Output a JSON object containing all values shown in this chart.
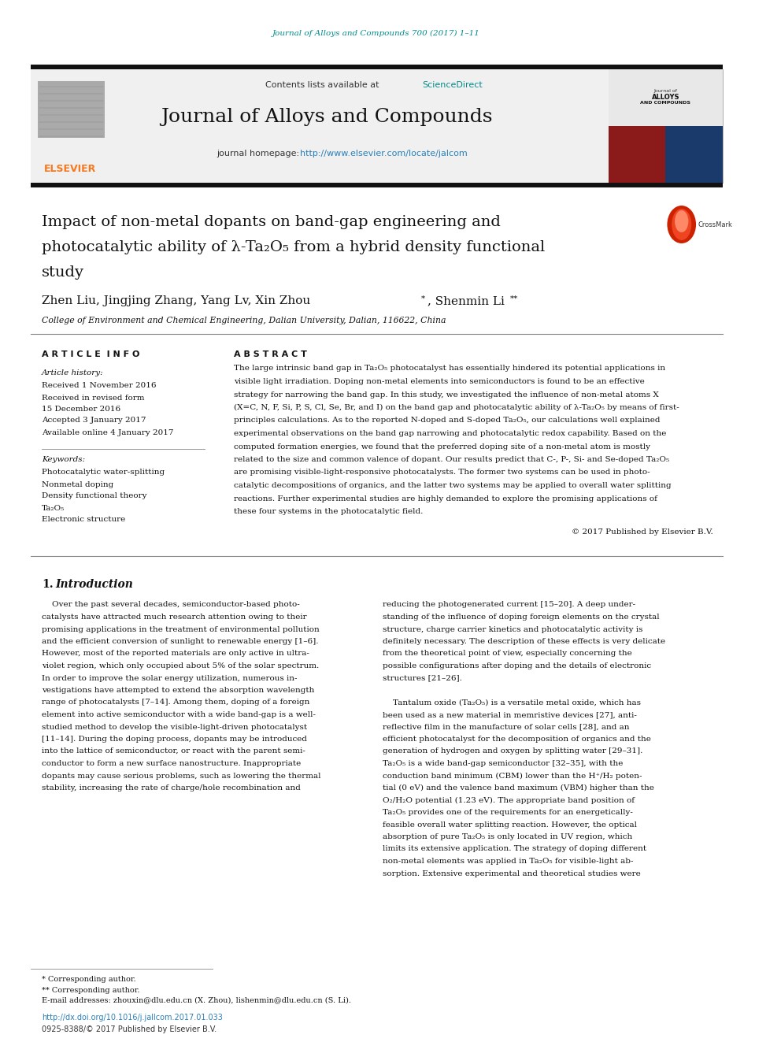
{
  "journal_ref": "Journal of Alloys and Compounds 700 (2017) 1–11",
  "journal_name": "Journal of Alloys and Compounds",
  "homepage_url": "http://www.elsevier.com/locate/jalcom",
  "title_line1": "Impact of non-metal dopants on band-gap engineering and",
  "title_line2": "photocatalytic ability of λ-Ta₂O₅ from a hybrid density functional",
  "title_line3": "study",
  "affiliation": "College of Environment and Chemical Engineering, Dalian University, Dalian, 116622, China",
  "article_info_header": "A R T I C L E  I N F O",
  "abstract_header": "A B S T R A C T",
  "article_history_label": "Article history:",
  "received1": "Received 1 November 2016",
  "received2": "Received in revised form",
  "received2b": "15 December 2016",
  "accepted": "Accepted 3 January 2017",
  "available": "Available online 4 January 2017",
  "keywords_label": "Keywords:",
  "kw1": "Photocatalytic water-splitting",
  "kw2": "Nonmetal doping",
  "kw3": "Density functional theory",
  "kw4": "Ta₂O₅",
  "kw5": "Electronic structure",
  "copyright": "© 2017 Published by Elsevier B.V.",
  "footnote1": "* Corresponding author.",
  "footnote2": "** Corresponding author.",
  "footnote3": "E-mail addresses: zhouxin@dlu.edu.cn (X. Zhou), lishenmin@dlu.edu.cn (S. Li).",
  "doi": "http://dx.doi.org/10.1016/j.jallcom.2017.01.033",
  "issn": "0925-8388/© 2017 Published by Elsevier B.V.",
  "color_orange": "#F47920",
  "color_teal": "#008B8B",
  "color_link": "#2980B9",
  "color_light_gray": "#F0F0F0"
}
